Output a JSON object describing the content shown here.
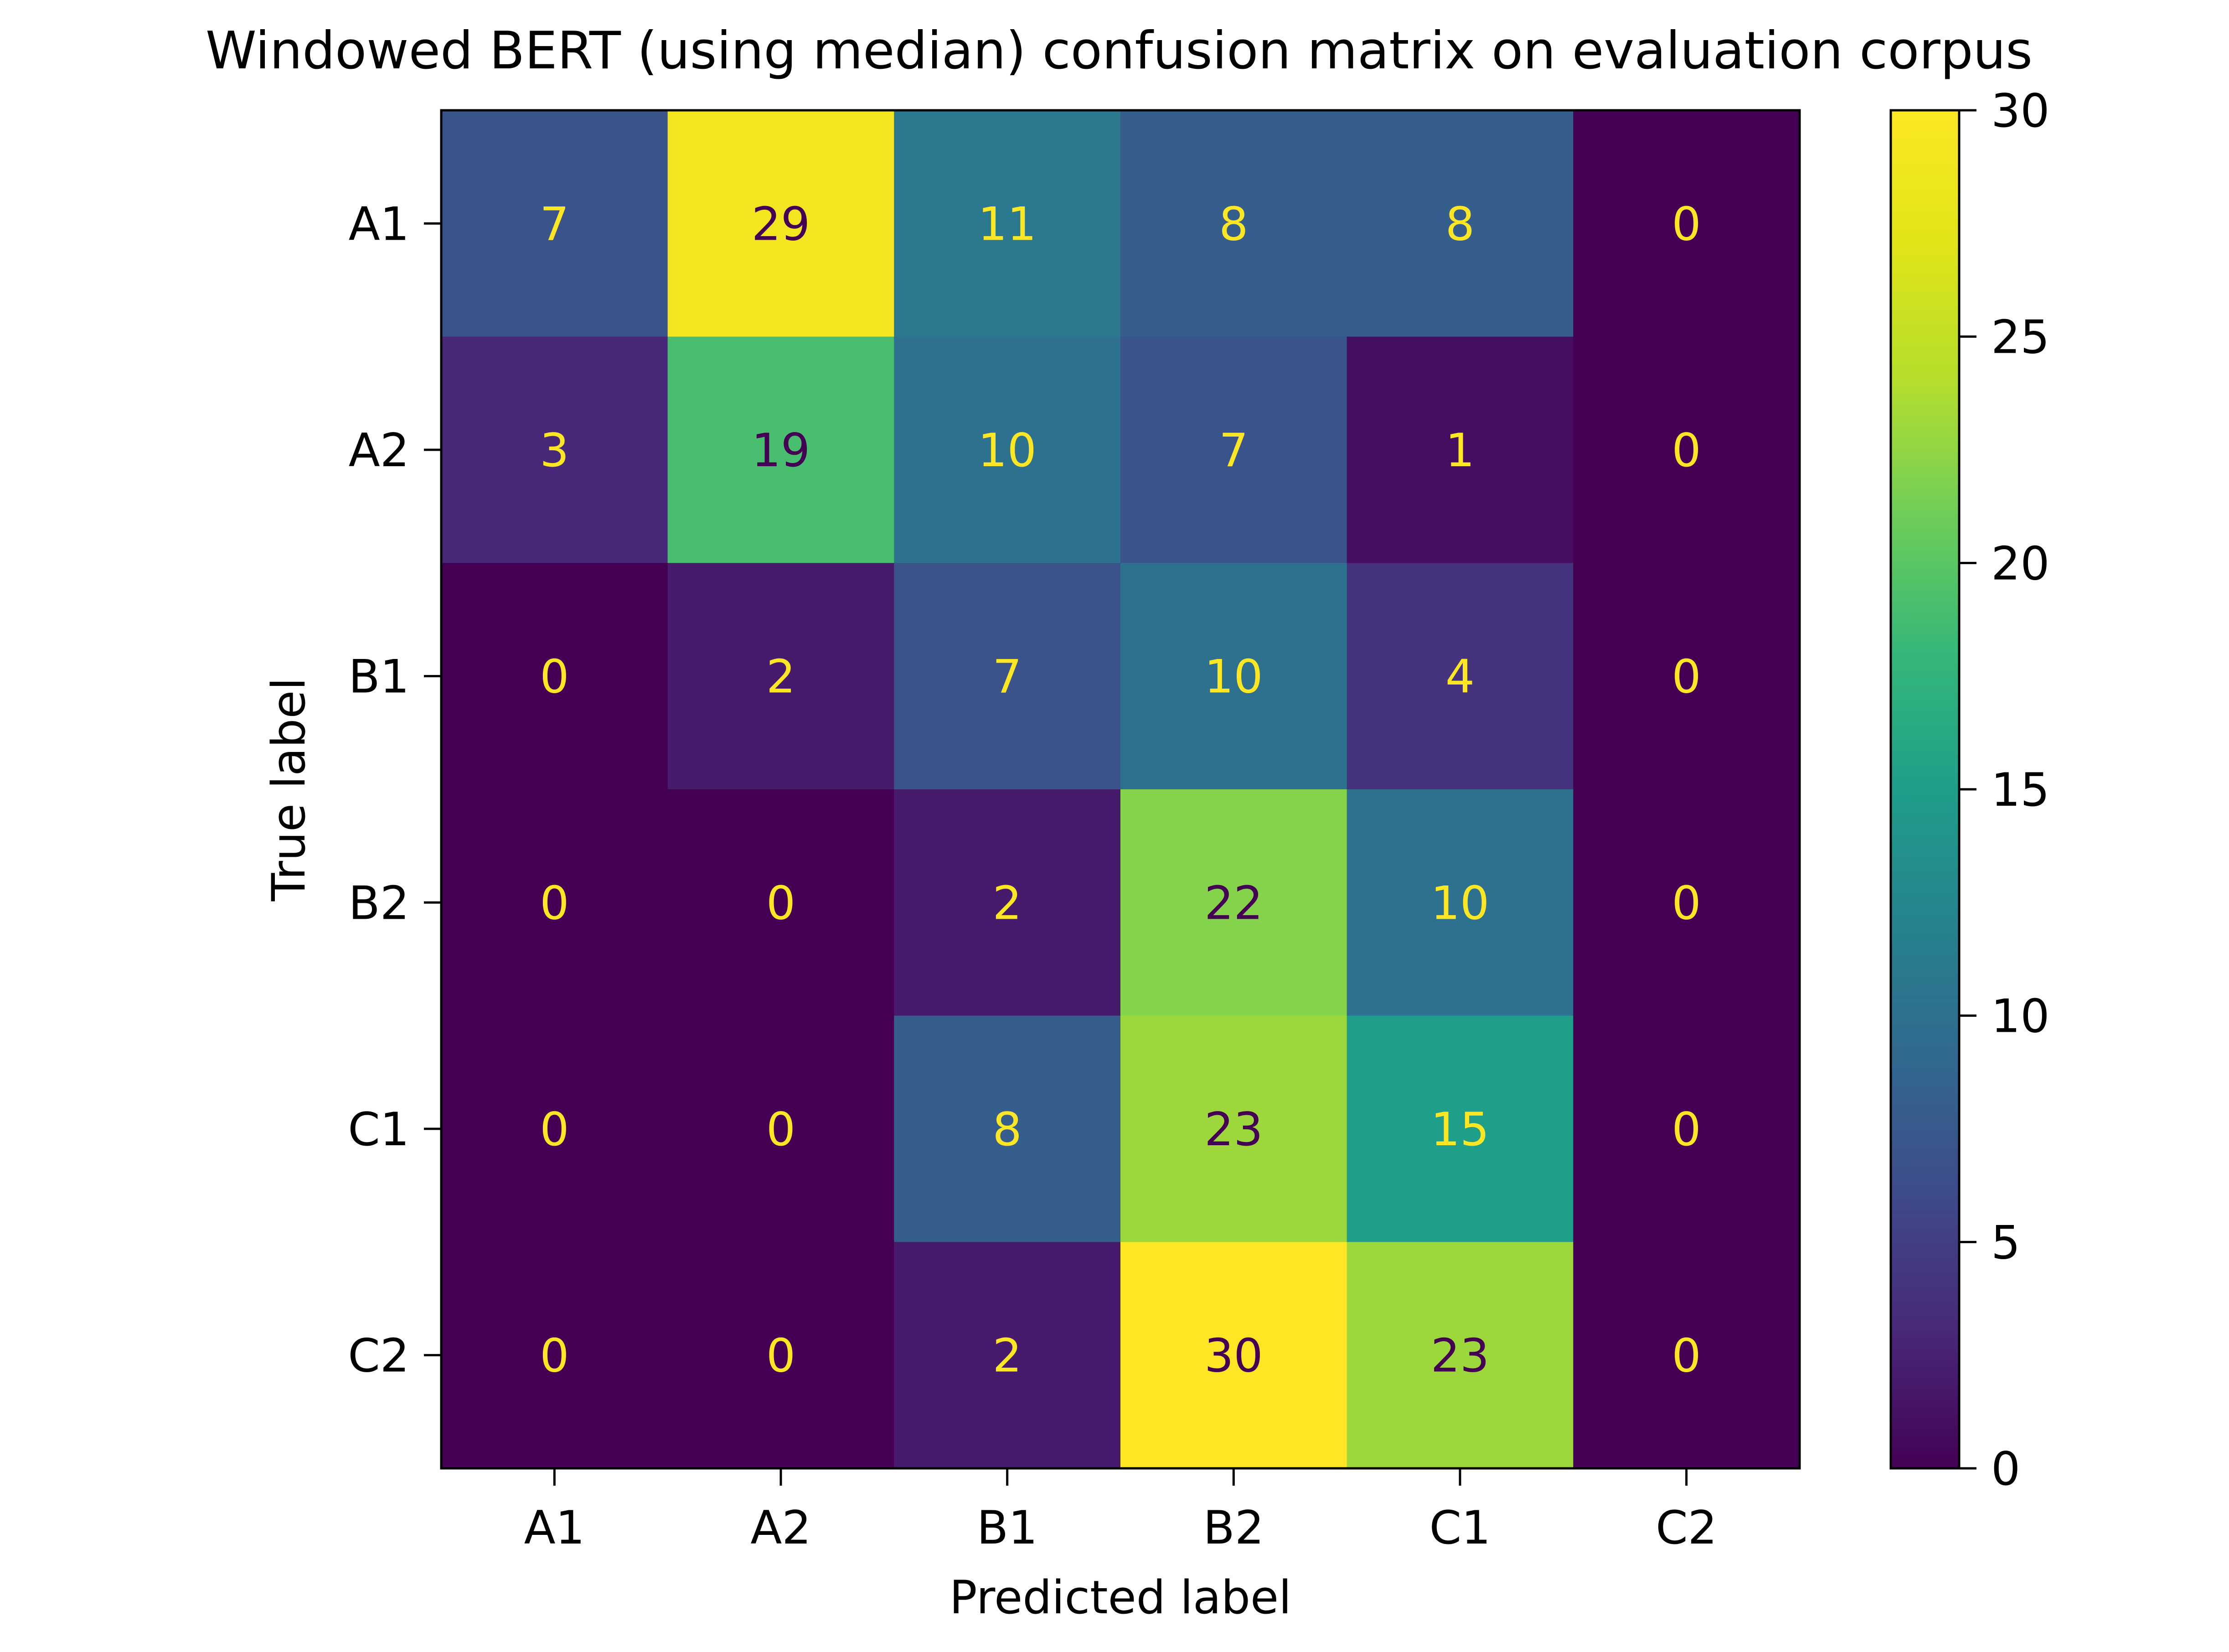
{
  "chart_data": {
    "type": "heatmap",
    "title": "Windowed BERT (using median) confusion matrix on evaluation corpus",
    "xlabel": "Predicted label",
    "ylabel": "True label",
    "x_categories": [
      "A1",
      "A2",
      "B1",
      "B2",
      "C1",
      "C2"
    ],
    "y_categories": [
      "A1",
      "A2",
      "B1",
      "B2",
      "C1",
      "C2"
    ],
    "matrix": [
      [
        7,
        29,
        11,
        8,
        8,
        0
      ],
      [
        3,
        19,
        10,
        7,
        1,
        0
      ],
      [
        0,
        2,
        7,
        10,
        4,
        0
      ],
      [
        0,
        0,
        2,
        22,
        10,
        0
      ],
      [
        0,
        0,
        8,
        23,
        15,
        0
      ],
      [
        0,
        0,
        2,
        30,
        23,
        0
      ]
    ],
    "colormap": "viridis",
    "color_range": [
      0,
      30
    ],
    "colorbar_ticks": [
      0,
      5,
      10,
      15,
      20,
      25,
      30
    ],
    "text_colors": {
      "on_dark": "#fde725",
      "on_light": "#440154"
    },
    "grid": false
  }
}
